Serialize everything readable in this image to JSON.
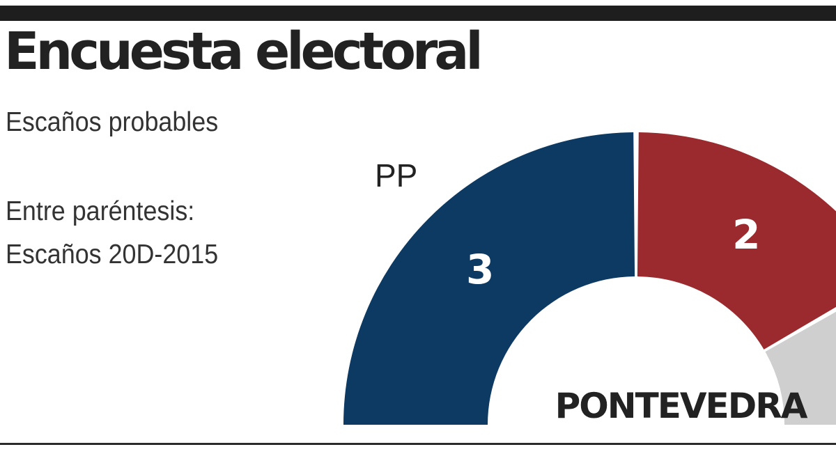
{
  "header": {
    "title": "Encuesta electoral",
    "subtitle": "Escaños probables",
    "note_line1": "Entre paréntesis:",
    "note_line2": "Escaños 20D-2015"
  },
  "colors": {
    "PP": "#0d3a63",
    "second": "#9b2a2e",
    "third": "#cfcfcf",
    "text_dark": "#222222",
    "top_bar": "#1e1e1e"
  },
  "chart_data": {
    "type": "pie",
    "variant": "semicircle-donut",
    "title": "PONTEVEDRA",
    "series": [
      {
        "name": "PP",
        "value": 3,
        "label": "3",
        "color": "#0d3a63"
      },
      {
        "name": "",
        "value": 2,
        "label": "2",
        "color": "#9b2a2e"
      },
      {
        "name": "",
        "value": 1,
        "label": "",
        "color": "#cfcfcf"
      }
    ]
  }
}
